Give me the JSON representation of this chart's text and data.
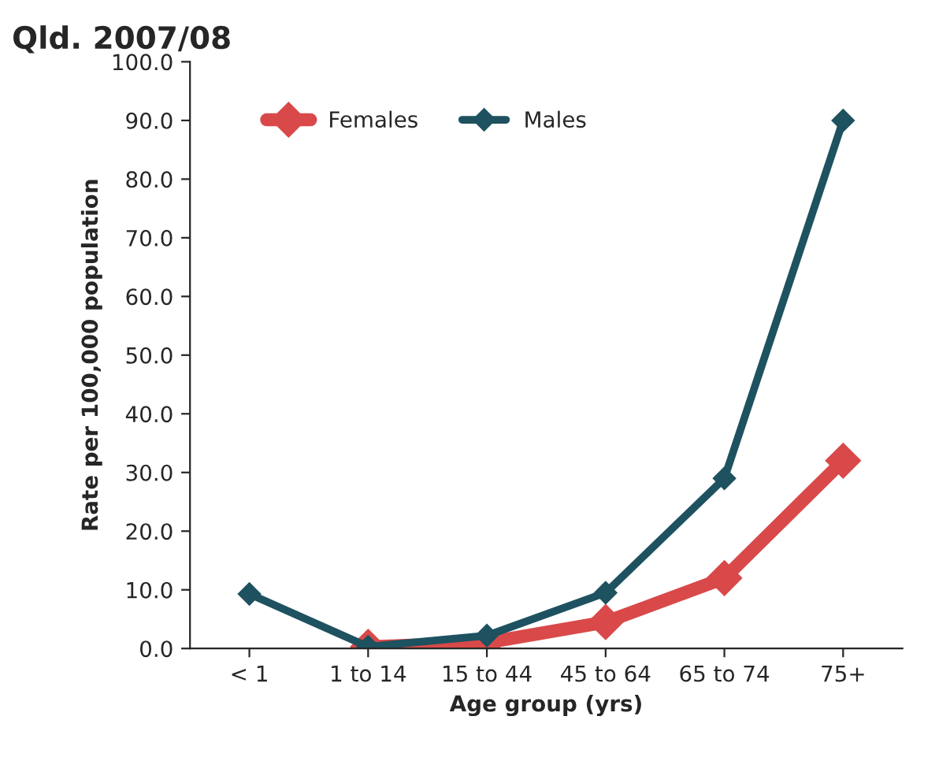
{
  "chart_data": {
    "type": "line",
    "title": "Qld. 2007/08",
    "xlabel": "Age group (yrs)",
    "ylabel": "Rate per 100,000 population",
    "categories": [
      "< 1",
      "1 to 14",
      "15 to 44",
      "45 to 64",
      "65 to 74",
      "75+"
    ],
    "series": [
      {
        "name": "Females",
        "color": "#d9494a",
        "values": [
          null,
          0.3,
          1.0,
          4.5,
          12.0,
          32.0
        ]
      },
      {
        "name": "Males",
        "color": "#1e5260",
        "values": [
          9.3,
          0.3,
          2.2,
          9.5,
          29.0,
          90.0
        ]
      }
    ],
    "ylim": [
      0,
      100
    ],
    "yticks": [
      {
        "value": 0,
        "label": "0.0"
      },
      {
        "value": 10,
        "label": "10.0"
      },
      {
        "value": 20,
        "label": "20.0"
      },
      {
        "value": 30,
        "label": "30.0"
      },
      {
        "value": 40,
        "label": "40.0"
      },
      {
        "value": 50,
        "label": "50.0"
      },
      {
        "value": 60,
        "label": "60.0"
      },
      {
        "value": 70,
        "label": "70.0"
      },
      {
        "value": 80,
        "label": "80.0"
      },
      {
        "value": 90,
        "label": "90.0"
      },
      {
        "value": 100,
        "label": "100.0"
      }
    ],
    "grid": false,
    "legend": "top left",
    "marker": "diamond",
    "line_style": "solid"
  }
}
